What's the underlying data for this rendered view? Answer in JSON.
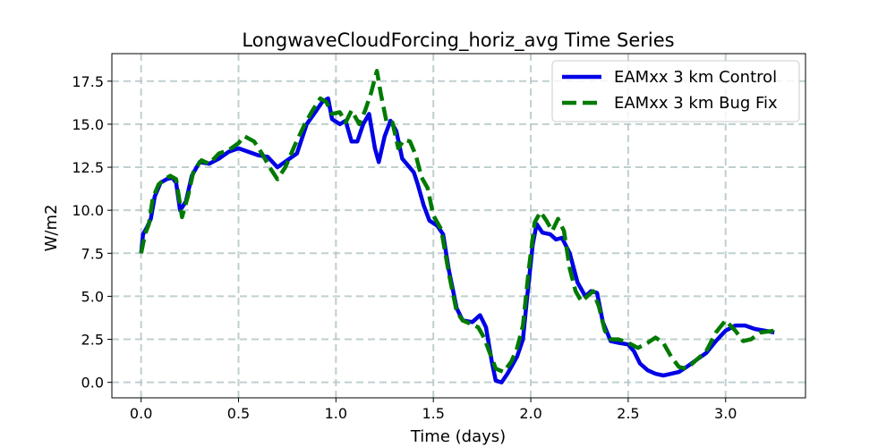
{
  "chart_data": {
    "type": "line",
    "title": "LongwaveCloudForcing_horiz_avg Time Series",
    "xlabel": "Time (days)",
    "ylabel": "W/m2",
    "xlim": [
      -0.15,
      3.41
    ],
    "ylim": [
      -0.9,
      19.1
    ],
    "x_ticks": [
      0.0,
      0.5,
      1.0,
      1.5,
      2.0,
      2.5,
      3.0
    ],
    "x_tick_labels": [
      "0.0",
      "0.5",
      "1.0",
      "1.5",
      "2.0",
      "2.5",
      "3.0"
    ],
    "y_ticks": [
      0.0,
      2.5,
      5.0,
      7.5,
      10.0,
      12.5,
      15.0,
      17.5
    ],
    "y_tick_labels": [
      "0.0",
      "2.5",
      "5.0",
      "7.5",
      "10.0",
      "12.5",
      "15.0",
      "17.5"
    ],
    "grid": true,
    "legend_position": "upper right",
    "series": [
      {
        "name": "EAMxx 3 km Control",
        "color": "#0000e6",
        "style": "solid",
        "points": [
          [
            0.0,
            7.5
          ],
          [
            0.01,
            8.6
          ],
          [
            0.03,
            9.0
          ],
          [
            0.05,
            9.5
          ],
          [
            0.07,
            10.8
          ],
          [
            0.1,
            11.6
          ],
          [
            0.13,
            11.8
          ],
          [
            0.16,
            11.9
          ],
          [
            0.18,
            11.6
          ],
          [
            0.2,
            10.0
          ],
          [
            0.23,
            10.5
          ],
          [
            0.26,
            12.0
          ],
          [
            0.3,
            12.8
          ],
          [
            0.35,
            12.7
          ],
          [
            0.4,
            13.0
          ],
          [
            0.45,
            13.4
          ],
          [
            0.5,
            13.6
          ],
          [
            0.55,
            13.4
          ],
          [
            0.6,
            13.2
          ],
          [
            0.65,
            13.1
          ],
          [
            0.7,
            12.5
          ],
          [
            0.75,
            12.9
          ],
          [
            0.8,
            13.3
          ],
          [
            0.85,
            15.0
          ],
          [
            0.9,
            15.8
          ],
          [
            0.93,
            16.3
          ],
          [
            0.96,
            16.5
          ],
          [
            0.98,
            15.3
          ],
          [
            1.02,
            15.0
          ],
          [
            1.05,
            15.2
          ],
          [
            1.08,
            14.0
          ],
          [
            1.11,
            14.0
          ],
          [
            1.14,
            15.0
          ],
          [
            1.17,
            15.6
          ],
          [
            1.2,
            13.6
          ],
          [
            1.22,
            12.8
          ],
          [
            1.25,
            14.3
          ],
          [
            1.28,
            15.2
          ],
          [
            1.31,
            14.6
          ],
          [
            1.34,
            13.0
          ],
          [
            1.37,
            12.6
          ],
          [
            1.4,
            12.2
          ],
          [
            1.42,
            11.5
          ],
          [
            1.45,
            10.3
          ],
          [
            1.48,
            9.4
          ],
          [
            1.52,
            9.1
          ],
          [
            1.55,
            8.6
          ],
          [
            1.58,
            6.5
          ],
          [
            1.62,
            4.3
          ],
          [
            1.65,
            3.6
          ],
          [
            1.7,
            3.5
          ],
          [
            1.74,
            3.9
          ],
          [
            1.77,
            3.2
          ],
          [
            1.8,
            1.2
          ],
          [
            1.82,
            0.1
          ],
          [
            1.85,
            0.0
          ],
          [
            1.88,
            0.5
          ],
          [
            1.9,
            0.9
          ],
          [
            1.93,
            1.5
          ],
          [
            1.96,
            2.5
          ],
          [
            1.98,
            4.8
          ],
          [
            2.01,
            8.0
          ],
          [
            2.03,
            9.2
          ],
          [
            2.06,
            8.7
          ],
          [
            2.1,
            8.6
          ],
          [
            2.13,
            8.3
          ],
          [
            2.16,
            8.4
          ],
          [
            2.2,
            7.5
          ],
          [
            2.24,
            5.8
          ],
          [
            2.28,
            5.0
          ],
          [
            2.31,
            5.3
          ],
          [
            2.34,
            5.2
          ],
          [
            2.37,
            3.5
          ],
          [
            2.41,
            2.4
          ],
          [
            2.45,
            2.3
          ],
          [
            2.5,
            2.2
          ],
          [
            2.53,
            1.8
          ],
          [
            2.56,
            1.1
          ],
          [
            2.6,
            0.7
          ],
          [
            2.64,
            0.5
          ],
          [
            2.68,
            0.4
          ],
          [
            2.72,
            0.5
          ],
          [
            2.76,
            0.6
          ],
          [
            2.8,
            0.9
          ],
          [
            2.85,
            1.3
          ],
          [
            2.9,
            1.7
          ],
          [
            2.95,
            2.4
          ],
          [
            3.0,
            3.0
          ],
          [
            3.05,
            3.3
          ],
          [
            3.1,
            3.3
          ],
          [
            3.15,
            3.1
          ],
          [
            3.2,
            3.0
          ],
          [
            3.25,
            2.9
          ]
        ]
      },
      {
        "name": "EAMxx 3 km Bug Fix",
        "color": "#007a00",
        "style": "dashed",
        "points": [
          [
            0.0,
            7.5
          ],
          [
            0.02,
            8.6
          ],
          [
            0.04,
            9.2
          ],
          [
            0.06,
            10.7
          ],
          [
            0.09,
            11.5
          ],
          [
            0.12,
            11.8
          ],
          [
            0.15,
            12.0
          ],
          [
            0.18,
            11.8
          ],
          [
            0.21,
            9.6
          ],
          [
            0.24,
            10.8
          ],
          [
            0.27,
            12.3
          ],
          [
            0.31,
            12.9
          ],
          [
            0.35,
            12.7
          ],
          [
            0.4,
            13.3
          ],
          [
            0.45,
            13.5
          ],
          [
            0.5,
            13.9
          ],
          [
            0.53,
            14.3
          ],
          [
            0.58,
            14.0
          ],
          [
            0.62,
            13.3
          ],
          [
            0.66,
            12.5
          ],
          [
            0.7,
            11.8
          ],
          [
            0.74,
            12.5
          ],
          [
            0.79,
            13.8
          ],
          [
            0.84,
            15.0
          ],
          [
            0.88,
            15.8
          ],
          [
            0.92,
            16.5
          ],
          [
            0.95,
            16.3
          ],
          [
            0.98,
            15.6
          ],
          [
            1.02,
            15.7
          ],
          [
            1.05,
            15.1
          ],
          [
            1.08,
            15.8
          ],
          [
            1.12,
            15.0
          ],
          [
            1.15,
            15.8
          ],
          [
            1.18,
            16.8
          ],
          [
            1.21,
            18.1
          ],
          [
            1.23,
            16.8
          ],
          [
            1.26,
            15.1
          ],
          [
            1.29,
            15.1
          ],
          [
            1.32,
            13.6
          ],
          [
            1.35,
            14.1
          ],
          [
            1.38,
            14.0
          ],
          [
            1.41,
            13.2
          ],
          [
            1.44,
            11.9
          ],
          [
            1.47,
            11.3
          ],
          [
            1.5,
            9.7
          ],
          [
            1.54,
            8.9
          ],
          [
            1.58,
            6.3
          ],
          [
            1.62,
            4.1
          ],
          [
            1.65,
            3.6
          ],
          [
            1.69,
            3.4
          ],
          [
            1.73,
            3.2
          ],
          [
            1.76,
            2.6
          ],
          [
            1.79,
            1.7
          ],
          [
            1.82,
            0.8
          ],
          [
            1.86,
            0.6
          ],
          [
            1.9,
            1.2
          ],
          [
            1.93,
            2.0
          ],
          [
            1.96,
            3.3
          ],
          [
            1.99,
            6.6
          ],
          [
            2.02,
            9.3
          ],
          [
            2.05,
            9.9
          ],
          [
            2.08,
            9.4
          ],
          [
            2.11,
            8.8
          ],
          [
            2.14,
            9.5
          ],
          [
            2.17,
            8.8
          ],
          [
            2.2,
            6.6
          ],
          [
            2.23,
            5.3
          ],
          [
            2.26,
            4.7
          ],
          [
            2.29,
            5.0
          ],
          [
            2.32,
            5.3
          ],
          [
            2.35,
            4.4
          ],
          [
            2.38,
            3.0
          ],
          [
            2.41,
            2.5
          ],
          [
            2.45,
            2.5
          ],
          [
            2.5,
            2.3
          ],
          [
            2.55,
            2.0
          ],
          [
            2.6,
            2.3
          ],
          [
            2.64,
            2.6
          ],
          [
            2.68,
            2.3
          ],
          [
            2.72,
            1.5
          ],
          [
            2.76,
            0.9
          ],
          [
            2.8,
            0.8
          ],
          [
            2.85,
            1.3
          ],
          [
            2.9,
            1.8
          ],
          [
            2.95,
            2.9
          ],
          [
            3.0,
            3.6
          ],
          [
            3.05,
            3.0
          ],
          [
            3.09,
            2.4
          ],
          [
            3.13,
            2.5
          ],
          [
            3.18,
            2.9
          ],
          [
            3.25,
            3.0
          ]
        ]
      }
    ]
  }
}
